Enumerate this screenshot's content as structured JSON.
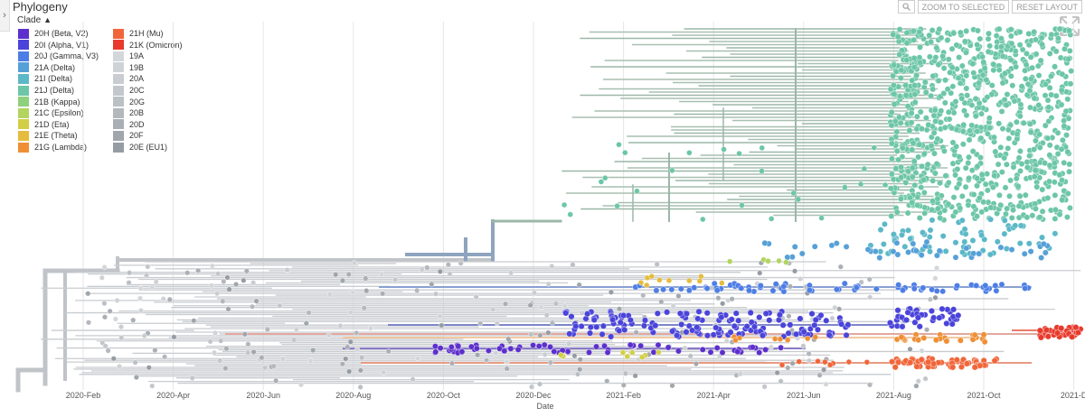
{
  "panel": {
    "title": "Phylogeny",
    "color_by_label": "Clade"
  },
  "toolbar": {
    "search_icon": "magnifier-icon",
    "zoom_label": "ZOOM TO SELECTED",
    "reset_label": "RESET LAYOUT"
  },
  "legend": [
    {
      "label": "20H (Beta, V2)",
      "color": "#5d2fcc"
    },
    {
      "label": "20I (Alpha, V1)",
      "color": "#4a44da"
    },
    {
      "label": "20J (Gamma, V3)",
      "color": "#4d7ee5"
    },
    {
      "label": "21A (Delta)",
      "color": "#56a0d8"
    },
    {
      "label": "21I (Delta)",
      "color": "#5bb8c7"
    },
    {
      "label": "21J (Delta)",
      "color": "#6cc6a7"
    },
    {
      "label": "21B (Kappa)",
      "color": "#8fd07d"
    },
    {
      "label": "21C (Epsilon)",
      "color": "#b3d45f"
    },
    {
      "label": "21D (Eta)",
      "color": "#d2cf47"
    },
    {
      "label": "21E (Theta)",
      "color": "#e5bc3e"
    },
    {
      "label": "21G (Lambda)",
      "color": "#ef8f35"
    },
    {
      "label": "21H (Mu)",
      "color": "#f0663a"
    },
    {
      "label": "21K (Omicron)",
      "color": "#e83a2c"
    },
    {
      "label": "19A",
      "color": "#d4d7da"
    },
    {
      "label": "19B",
      "color": "#cfd3d6"
    },
    {
      "label": "20A",
      "color": "#c9cdd1"
    },
    {
      "label": "20C",
      "color": "#c3c7cb"
    },
    {
      "label": "20G",
      "color": "#bbc0c4"
    },
    {
      "label": "20B",
      "color": "#b3b8bd"
    },
    {
      "label": "20D",
      "color": "#aaafb5"
    },
    {
      "label": "20F",
      "color": "#a0a6ac"
    },
    {
      "label": "20E (EU1)",
      "color": "#969ca3"
    }
  ],
  "axis": {
    "title": "Date",
    "ticks": [
      "2020-Feb",
      "2020-Apr",
      "2020-Jun",
      "2020-Aug",
      "2020-Oct",
      "2020-Dec",
      "2021-Feb",
      "2021-Apr",
      "2021-Jun",
      "2021-Aug",
      "2021-Oct",
      "2021-D"
    ]
  }
}
